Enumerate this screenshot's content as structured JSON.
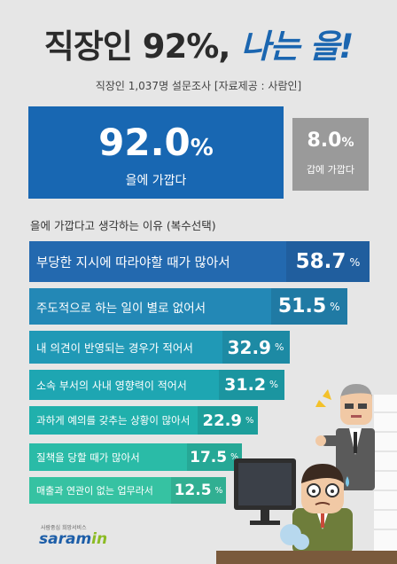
{
  "header": {
    "title_dark": "직장인 92%,",
    "title_accent": "나는 을!",
    "subtitle": "직장인 1,037명 설문조사 [자료제공 : 사람인]"
  },
  "summary": {
    "main_value": "92.0",
    "main_unit": "%",
    "main_label": "을에 가깝다",
    "side_value": "8.0",
    "side_unit": "%",
    "side_label": "갑에 가깝다"
  },
  "section_title": "을에 가깝다고 생각하는 이유 (복수선택)",
  "logo": {
    "tagline": "사람중심 희망서비스",
    "name_main": "saram",
    "name_accent": "in"
  },
  "colors": {
    "primary_blue": "#1867b2",
    "gray_box": "#9a9a9a",
    "background": "#e6e6e6",
    "bar_gradient": [
      "#2369af",
      "#2388b6",
      "#2099b6",
      "#1ea6b2",
      "#20b0ac",
      "#2abba7",
      "#36c2a2"
    ]
  },
  "chart_data": {
    "type": "bar",
    "title": "을에 가깝다고 생각하는 이유 (복수선택)",
    "unit": "%",
    "categories": [
      "부당한 지시에 따라야할 때가 많아서",
      "주도적으로 하는 일이 별로 없어서",
      "내 의견이 반영되는 경우가 적어서",
      "소속 부서의 사내 영향력이 적어서",
      "과하게 예의를 갖추는 상황이 많아서",
      "질책을 당할 때가 많아서",
      "매출과 연관이 없는 업무라서"
    ],
    "values": [
      58.7,
      51.5,
      32.9,
      31.2,
      22.9,
      17.5,
      12.5
    ],
    "value_labels": [
      "58.7",
      "51.5",
      "32.9",
      "31.2",
      "22.9",
      "17.5",
      "12.5"
    ]
  }
}
